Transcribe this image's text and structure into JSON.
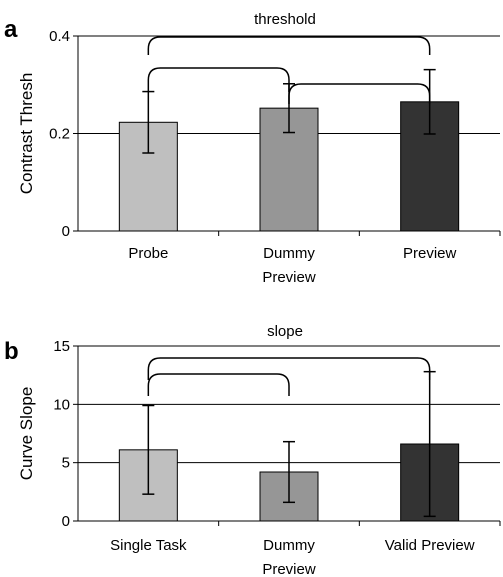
{
  "chart_data": [
    {
      "panel": "a",
      "type": "bar",
      "title": "threshold",
      "xlabel": "",
      "ylabel": "Contrast Thresh",
      "ylim": [
        0,
        0.4
      ],
      "yticks": [
        0,
        0.2,
        0.4
      ],
      "ytick_labels": [
        "0",
        "0.2",
        "0.4"
      ],
      "grid": true,
      "categories": [
        [
          "Probe"
        ],
        [
          "Dummy",
          "Preview"
        ],
        [
          "Preview"
        ]
      ],
      "values": [
        0.223,
        0.252,
        0.265
      ],
      "errors": [
        0.063,
        0.05,
        0.066
      ],
      "colors": [
        "#bfbfbf",
        "#969696",
        "#333333"
      ],
      "brackets": [
        [
          0,
          1
        ],
        [
          1,
          2
        ],
        [
          0,
          2
        ]
      ]
    },
    {
      "panel": "b",
      "type": "bar",
      "title": "slope",
      "xlabel": "",
      "ylabel": "Curve Slope",
      "ylim": [
        0,
        15
      ],
      "yticks": [
        0,
        5,
        10,
        15
      ],
      "ytick_labels": [
        "0",
        "5",
        "10",
        "15"
      ],
      "grid": true,
      "categories": [
        [
          "Single Task"
        ],
        [
          "Dummy",
          "Preview"
        ],
        [
          "Valid Preview"
        ]
      ],
      "values": [
        6.1,
        4.2,
        6.6
      ],
      "errors": [
        3.8,
        2.6,
        6.2
      ],
      "colors": [
        "#bfbfbf",
        "#969696",
        "#333333"
      ],
      "brackets": [
        [
          0,
          1
        ],
        [
          0,
          2
        ]
      ]
    }
  ]
}
